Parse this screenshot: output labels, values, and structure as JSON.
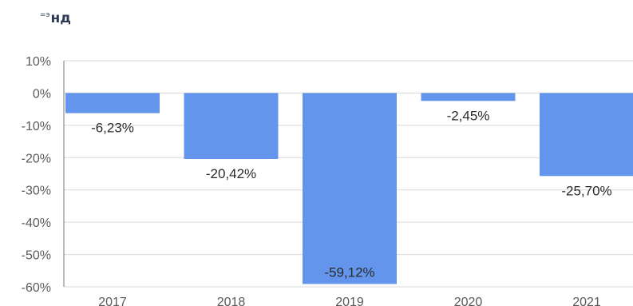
{
  "header": {
    "title_prefix": "=э",
    "title": "нд"
  },
  "chart_data": {
    "type": "bar",
    "categories": [
      "2017",
      "2018",
      "2019",
      "2020",
      "2021"
    ],
    "values": [
      -6.23,
      -20.42,
      -59.12,
      -2.45,
      -25.7
    ],
    "data_labels": [
      "-6,23%",
      "-20,42%",
      "-59,12%",
      "-2,45%",
      "-25,70%"
    ],
    "title": "",
    "xlabel": "",
    "ylabel": "",
    "ylim": [
      -60,
      10
    ],
    "yticks": [
      10,
      0,
      -10,
      -20,
      -30,
      -40,
      -50,
      -60
    ],
    "ytick_labels": [
      "10%",
      "0%",
      "-10%",
      "-20%",
      "-30%",
      "-40%",
      "-50%",
      "-60%"
    ],
    "grid": true,
    "bar_color": "#6495ed"
  }
}
